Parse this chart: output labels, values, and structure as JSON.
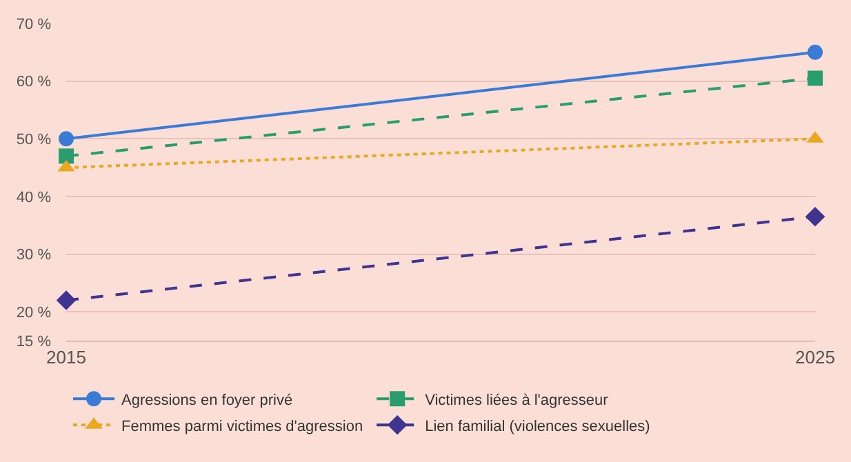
{
  "chart_data": {
    "type": "line",
    "x": [
      2015,
      2025
    ],
    "xlim": [
      2015,
      2025
    ],
    "xticks": [
      2015,
      2025
    ],
    "ylim": [
      15,
      70
    ],
    "yticks": [
      {
        "value": 15,
        "label": "15 %"
      },
      {
        "value": 20,
        "label": "20 %"
      },
      {
        "value": 30,
        "label": "30 %"
      },
      {
        "value": 40,
        "label": "40 %"
      },
      {
        "value": 50,
        "label": "50 %"
      },
      {
        "value": 60,
        "label": "60 %"
      },
      {
        "value": 70,
        "label": "70 %"
      }
    ],
    "grid": "y",
    "legend": "bottom",
    "series": [
      {
        "name": "Agressions en foyer privé",
        "color": "#3a7bd5",
        "values": [
          50,
          65
        ],
        "marker": "circle",
        "line_style": "solid"
      },
      {
        "name": "Victimes liées à l'agresseur",
        "color": "#2a9d6e",
        "values": [
          47,
          60.5
        ],
        "marker": "square",
        "line_style": "dashed"
      },
      {
        "name": "Femmes parmi victimes d'agression",
        "color": "#e8a820",
        "values": [
          45,
          50
        ],
        "marker": "triangle",
        "line_style": "dotted"
      },
      {
        "name": "Lien familial (violences sexuelles)",
        "color": "#3f3590",
        "values": [
          22,
          36.5
        ],
        "marker": "diamond",
        "line_style": "dashed"
      }
    ]
  }
}
